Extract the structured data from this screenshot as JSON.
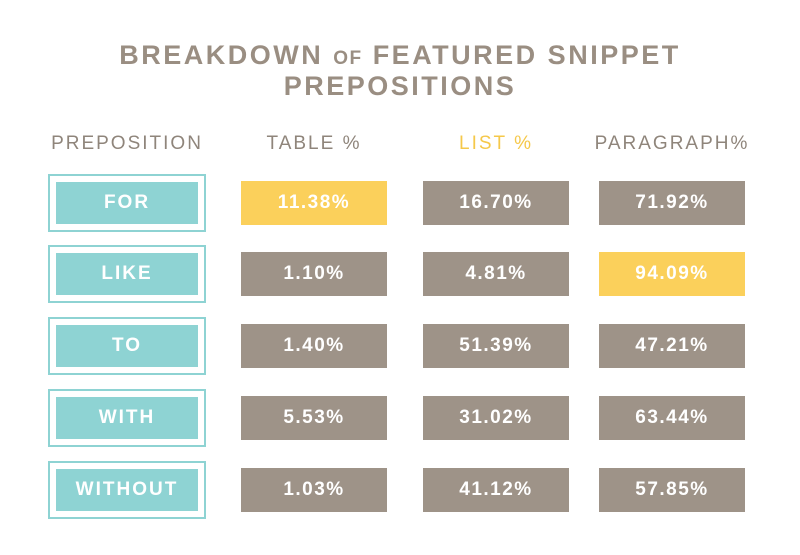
{
  "title": {
    "main": "BREAKDOWN",
    "connector": "OF",
    "rest": "FEATURED SNIPPET PREPOSITIONS"
  },
  "colors": {
    "title": "#9a8e82",
    "neutral_cell": "#9e9388",
    "highlight_cell": "#fbd05b",
    "label_teal": "#8ed3d3"
  },
  "chart_data": {
    "type": "table",
    "columns": [
      "PREPOSITION",
      "TABLE %",
      "LIST %",
      "PARAGRAPH%"
    ],
    "highlighted_column": "LIST %",
    "rows": [
      {
        "label": "FOR",
        "values": [
          "11.38%",
          "16.70%",
          "71.92%"
        ],
        "highlight": 0
      },
      {
        "label": "LIKE",
        "values": [
          "1.10%",
          "4.81%",
          "94.09%"
        ],
        "highlight": 2
      },
      {
        "label": "TO",
        "values": [
          "1.40%",
          "51.39%",
          "47.21%"
        ],
        "highlight": -1
      },
      {
        "label": "WITH",
        "values": [
          "5.53%",
          "31.02%",
          "63.44%"
        ],
        "highlight": -1
      },
      {
        "label": "WITHOUT",
        "values": [
          "1.03%",
          "41.12%",
          "57.85%"
        ],
        "highlight": -1
      }
    ]
  }
}
